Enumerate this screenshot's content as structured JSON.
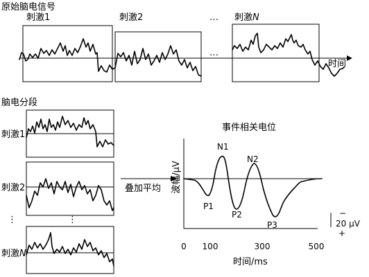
{
  "raw_section": {
    "title": "原始脑电信号",
    "stim_1": "刺激1",
    "stim_2": "刺激2",
    "stim_n_prefix": "刺激",
    "stim_n_var": "N",
    "ellipsis": "…",
    "time_label": "时间"
  },
  "segment_section": {
    "title": "脑电分段",
    "stim_1": "刺激1",
    "stim_2": "刺激2",
    "stim_n_prefix": "刺激",
    "stim_n_var": "N",
    "vdots": "⋮"
  },
  "averaging": {
    "label": "叠加平均"
  },
  "erp": {
    "title": "事件相关电位",
    "ylabel": "波幅/μV",
    "xlabel": "时间/ms",
    "peaks": [
      "P1",
      "N1",
      "P2",
      "N2",
      "P3"
    ],
    "xticks": [
      "0",
      "100",
      "300",
      "500"
    ],
    "scale_label": "20 μV",
    "scale_minus": "−",
    "scale_plus": "+"
  }
}
